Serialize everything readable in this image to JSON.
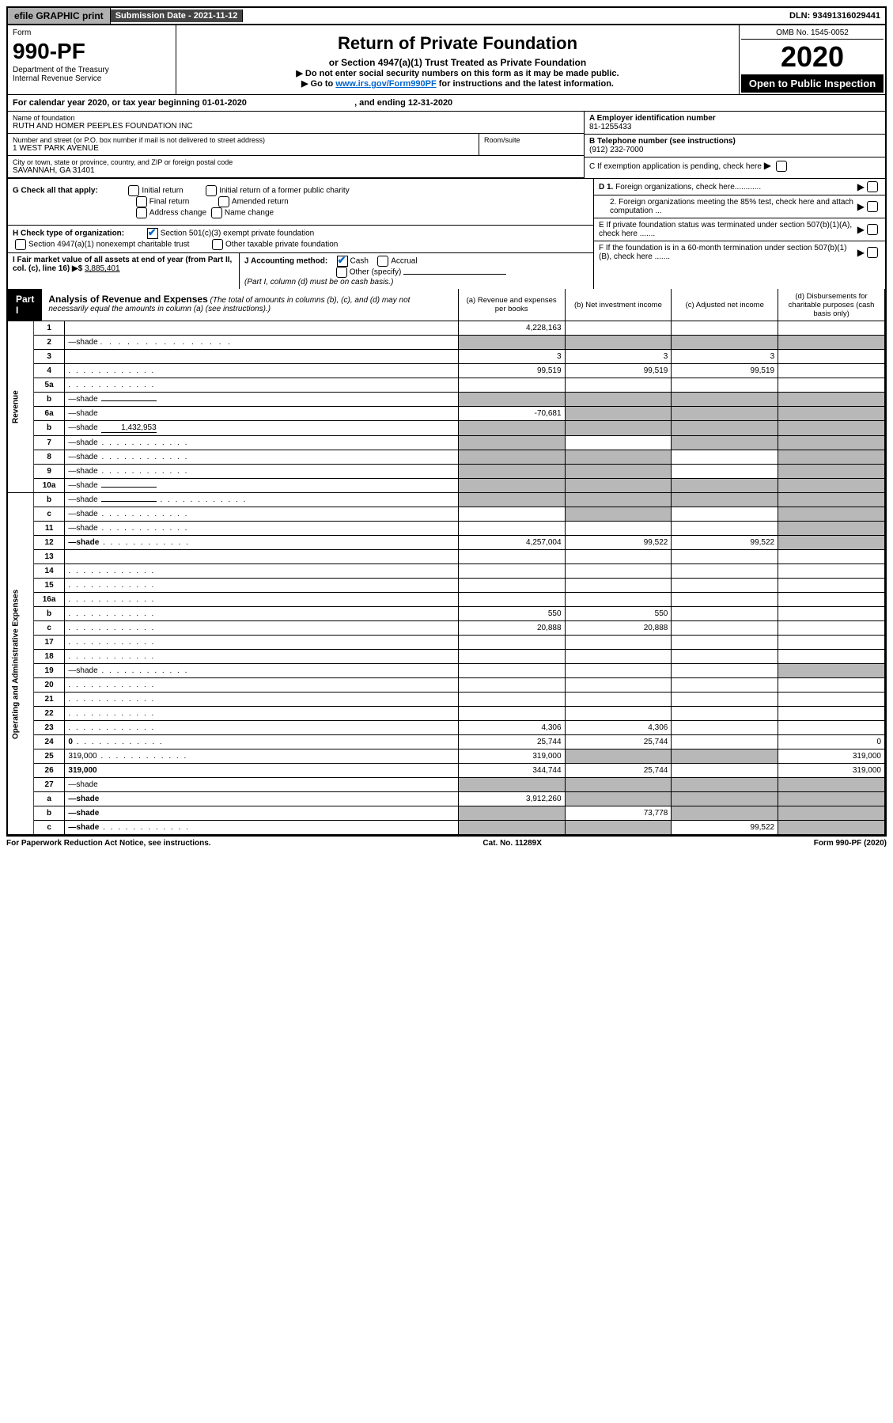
{
  "top": {
    "efile": "efile GRAPHIC print",
    "sub_date": "Submission Date - 2021-11-12",
    "dln": "DLN: 93491316029441"
  },
  "hdr": {
    "form": "Form",
    "form_num": "990-PF",
    "dept": "Department of the Treasury",
    "irs": "Internal Revenue Service",
    "title": "Return of Private Foundation",
    "subtitle": "or Section 4947(a)(1) Trust Treated as Private Foundation",
    "note1": "▶ Do not enter social security numbers on this form as it may be made public.",
    "note2_pre": "▶ Go to ",
    "note2_link": "www.irs.gov/Form990PF",
    "note2_post": " for instructions and the latest information.",
    "omb": "OMB No. 1545-0052",
    "year": "2020",
    "open": "Open to Public Inspection"
  },
  "cal": {
    "text_pre": "For calendar year 2020, or tax year beginning ",
    "begin": "01-01-2020",
    "mid": " , and ending ",
    "end": "12-31-2020"
  },
  "ent": {
    "name_lbl": "Name of foundation",
    "name": "RUTH AND HOMER PEEPLES FOUNDATION INC",
    "addr_lbl": "Number and street (or P.O. box number if mail is not delivered to street address)",
    "addr": "1 WEST PARK AVENUE",
    "room_lbl": "Room/suite",
    "city_lbl": "City or town, state or province, country, and ZIP or foreign postal code",
    "city": "SAVANNAH, GA  31401",
    "ein_lbl": "A Employer identification number",
    "ein": "81-1255433",
    "tel_lbl": "B Telephone number (see instructions)",
    "tel": "(912) 232-7000",
    "c": "C If exemption application is pending, check here",
    "d1": "D 1. Foreign organizations, check here............",
    "d2": "2. Foreign organizations meeting the 85% test, check here and attach computation ...",
    "e": "E  If private foundation status was terminated under section 507(b)(1)(A), check here .......",
    "f": "F  If the foundation is in a 60-month termination under section 507(b)(1)(B), check here .......",
    "g_lbl": "G Check all that apply:",
    "g_items": [
      "Initial return",
      "Initial return of a former public charity",
      "Final return",
      "Amended return",
      "Address change",
      "Name change"
    ],
    "h_lbl": "H Check type of organization:",
    "h_items": [
      "Section 501(c)(3) exempt private foundation",
      "Section 4947(a)(1) nonexempt charitable trust",
      "Other taxable private foundation"
    ],
    "i_lbl": "I Fair market value of all assets at end of year (from Part II, col. (c), line 16) ▶$ ",
    "i_val": "3,885,401",
    "j_lbl": "J Accounting method:",
    "j_items": [
      "Cash",
      "Accrual",
      "Other (specify)"
    ],
    "j_note": "(Part I, column (d) must be on cash basis.)"
  },
  "part1": {
    "label": "Part I",
    "title": "Analysis of Revenue and Expenses",
    "title_note": " (The total of amounts in columns (b), (c), and (d) may not necessarily equal the amounts in column (a) (see instructions).)",
    "cols": {
      "a": "(a) Revenue and expenses per books",
      "b": "(b) Net investment income",
      "c": "(c) Adjusted net income",
      "d": "(d) Disbursements for charitable purposes (cash basis only)"
    }
  },
  "side": {
    "rev": "Revenue",
    "exp": "Operating and Administrative Expenses"
  },
  "rows": [
    {
      "n": "1",
      "d": "",
      "a": "4,228,163",
      "b": "",
      "c": ""
    },
    {
      "n": "2",
      "d": "—shade",
      "dotted": true,
      "a": "—shade",
      "b": "—shade",
      "c": "—shade"
    },
    {
      "n": "3",
      "d": "",
      "a": "3",
      "b": "3",
      "c": "3"
    },
    {
      "n": "4",
      "d": "",
      "dots": true,
      "a": "99,519",
      "b": "99,519",
      "c": "99,519"
    },
    {
      "n": "5a",
      "d": "",
      "dots": true,
      "a": "",
      "b": "",
      "c": ""
    },
    {
      "n": "b",
      "d": "—shade",
      "inline": "",
      "a": "—shade",
      "b": "—shade",
      "c": "—shade"
    },
    {
      "n": "6a",
      "d": "—shade",
      "a": "-70,681",
      "b": "—shade",
      "c": "—shade"
    },
    {
      "n": "b",
      "d": "—shade",
      "inline": "1,432,953",
      "a": "—shade",
      "b": "—shade",
      "c": "—shade"
    },
    {
      "n": "7",
      "d": "—shade",
      "dots": true,
      "a": "—shade",
      "b": "",
      "c": "—shade"
    },
    {
      "n": "8",
      "d": "—shade",
      "dots": true,
      "a": "—shade",
      "b": "—shade",
      "c": ""
    },
    {
      "n": "9",
      "d": "—shade",
      "dots": true,
      "a": "—shade",
      "b": "—shade",
      "c": ""
    },
    {
      "n": "10a",
      "d": "—shade",
      "inline": "",
      "a": "—shade",
      "b": "—shade",
      "c": "—shade"
    },
    {
      "n": "b",
      "d": "—shade",
      "dots": true,
      "inline": "",
      "a": "—shade",
      "b": "—shade",
      "c": "—shade"
    },
    {
      "n": "c",
      "d": "—shade",
      "dots": true,
      "a": "",
      "b": "—shade",
      "c": ""
    },
    {
      "n": "11",
      "d": "—shade",
      "dots": true,
      "a": "",
      "b": "",
      "c": ""
    },
    {
      "n": "12",
      "d": "—shade",
      "bold": true,
      "dots": true,
      "a": "4,257,004",
      "b": "99,522",
      "c": "99,522"
    },
    {
      "n": "13",
      "d": "",
      "a": "",
      "b": "",
      "c": ""
    },
    {
      "n": "14",
      "d": "",
      "dots": true,
      "a": "",
      "b": "",
      "c": ""
    },
    {
      "n": "15",
      "d": "",
      "dots": true,
      "a": "",
      "b": "",
      "c": ""
    },
    {
      "n": "16a",
      "d": "",
      "dots": true,
      "a": "",
      "b": "",
      "c": ""
    },
    {
      "n": "b",
      "d": "",
      "dots": true,
      "a": "550",
      "b": "550",
      "c": ""
    },
    {
      "n": "c",
      "d": "",
      "dots": true,
      "a": "20,888",
      "b": "20,888",
      "c": ""
    },
    {
      "n": "17",
      "d": "",
      "dots": true,
      "a": "",
      "b": "",
      "c": ""
    },
    {
      "n": "18",
      "d": "",
      "dots": true,
      "a": "",
      "b": "",
      "c": ""
    },
    {
      "n": "19",
      "d": "—shade",
      "dots": true,
      "a": "",
      "b": "",
      "c": ""
    },
    {
      "n": "20",
      "d": "",
      "dots": true,
      "a": "",
      "b": "",
      "c": ""
    },
    {
      "n": "21",
      "d": "",
      "dots": true,
      "a": "",
      "b": "",
      "c": ""
    },
    {
      "n": "22",
      "d": "",
      "dots": true,
      "a": "",
      "b": "",
      "c": ""
    },
    {
      "n": "23",
      "d": "",
      "dots": true,
      "a": "4,306",
      "b": "4,306",
      "c": ""
    },
    {
      "n": "24",
      "d": "0",
      "bold": true,
      "dots": true,
      "a": "25,744",
      "b": "25,744",
      "c": ""
    },
    {
      "n": "25",
      "d": "319,000",
      "dots": true,
      "a": "319,000",
      "b": "—shade",
      "c": "—shade"
    },
    {
      "n": "26",
      "d": "319,000",
      "bold": true,
      "a": "344,744",
      "b": "25,744",
      "c": ""
    },
    {
      "n": "27",
      "d": "—shade",
      "a": "—shade",
      "b": "—shade",
      "c": "—shade"
    },
    {
      "n": "a",
      "d": "—shade",
      "bold": true,
      "a": "3,912,260",
      "b": "—shade",
      "c": "—shade"
    },
    {
      "n": "b",
      "d": "—shade",
      "bold": true,
      "a": "—shade",
      "b": "73,778",
      "c": "—shade"
    },
    {
      "n": "c",
      "d": "—shade",
      "bold": true,
      "dots": true,
      "a": "—shade",
      "b": "—shade",
      "c": "99,522"
    }
  ],
  "footer": {
    "left": "For Paperwork Reduction Act Notice, see instructions.",
    "mid": "Cat. No. 11289X",
    "right": "Form 990-PF (2020)"
  }
}
